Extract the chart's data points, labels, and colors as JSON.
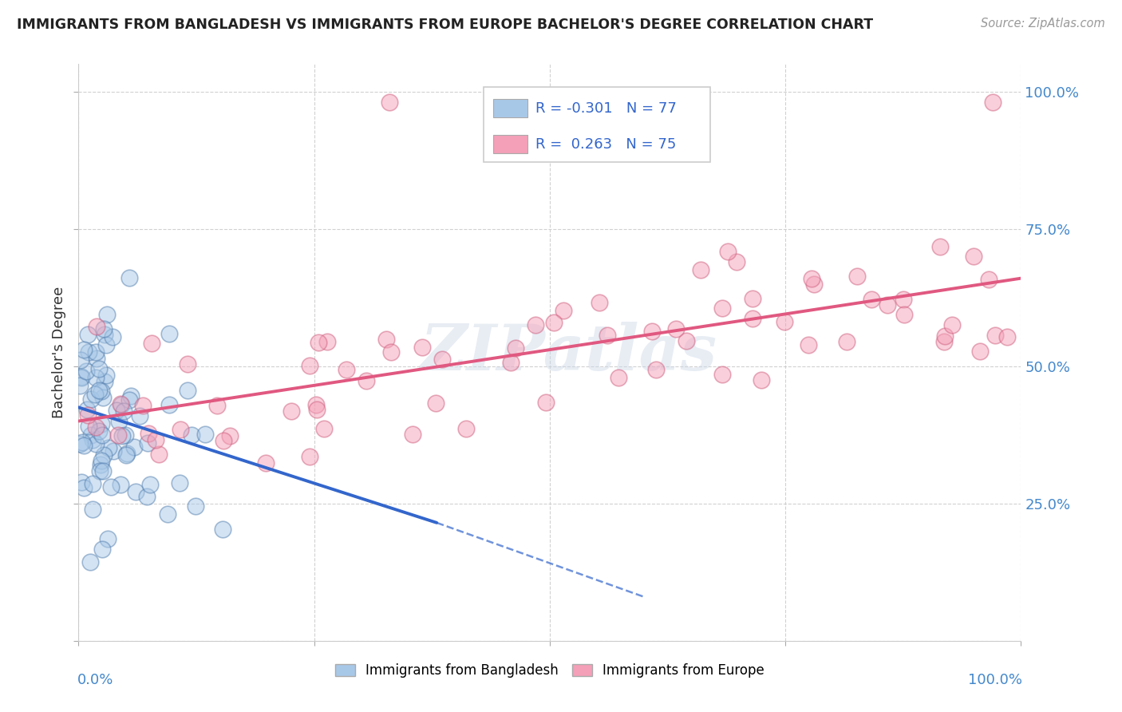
{
  "title": "IMMIGRANTS FROM BANGLADESH VS IMMIGRANTS FROM EUROPE BACHELOR'S DEGREE CORRELATION CHART",
  "source": "Source: ZipAtlas.com",
  "ylabel": "Bachelor's Degree",
  "right_ytick_labels": [
    "25.0%",
    "50.0%",
    "75.0%",
    "100.0%"
  ],
  "right_ytick_positions": [
    0.25,
    0.5,
    0.75,
    1.0
  ],
  "legend_entries": [
    {
      "color": "#a8c8e8",
      "R": "-0.301",
      "N": "77"
    },
    {
      "color": "#f4a0b8",
      "R": " 0.263",
      "N": "75"
    }
  ],
  "legend_labels": [
    "Immigrants from Bangladesh",
    "Immigrants from Europe"
  ],
  "legend_colors": [
    "#a8c8e8",
    "#f4a0b8"
  ],
  "watermark": "ZIPatlas",
  "background_color": "#ffffff",
  "grid_color": "#cccccc",
  "scatter_blue_color": "#a8c8e8",
  "scatter_blue_edge": "#5580b0",
  "scatter_pink_color": "#f4a0b8",
  "scatter_pink_edge": "#d06080",
  "trend_blue": {
    "x_start": 0.0,
    "x_end": 0.38,
    "y_start": 0.425,
    "y_end": 0.215,
    "color": "#3366cc",
    "dashed_x_end": 0.6,
    "dashed_y_end": 0.08
  },
  "trend_pink": {
    "x_start": 0.0,
    "x_end": 1.0,
    "y_start": 0.4,
    "y_end": 0.66,
    "color": "#e05880"
  },
  "xlim": [
    0.0,
    1.0
  ],
  "ylim": [
    0.0,
    1.05
  ],
  "n_blue": 77,
  "n_pink": 75
}
